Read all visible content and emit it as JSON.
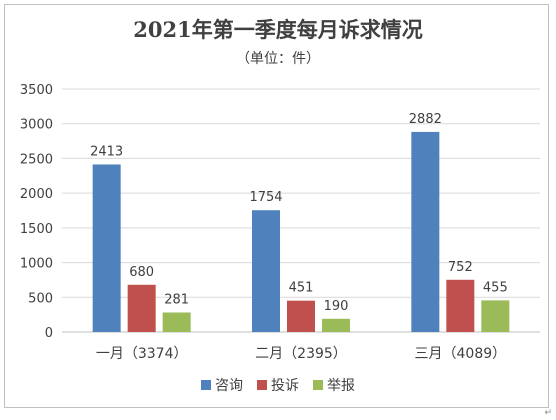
{
  "chart_data": {
    "type": "bar",
    "title": "2021年第一季度每月诉求情况",
    "subtitle": "（单位：件）",
    "categories": [
      "一月（3374）",
      "二月（2395）",
      "三月（4089）"
    ],
    "series": [
      {
        "name": "咨询",
        "color": "#4f81bd",
        "values": [
          2413,
          1754,
          2882
        ]
      },
      {
        "name": "投诉",
        "color": "#c0504d",
        "values": [
          680,
          451,
          752
        ]
      },
      {
        "name": "举报",
        "color": "#9bbb59",
        "values": [
          281,
          190,
          455
        ]
      }
    ],
    "ylim": [
      0,
      3500
    ],
    "yticks": [
      0,
      500,
      1000,
      1500,
      2000,
      2500,
      3000,
      3500
    ],
    "grid": true,
    "legend_position": "bottom"
  },
  "corner_mark": "↵"
}
